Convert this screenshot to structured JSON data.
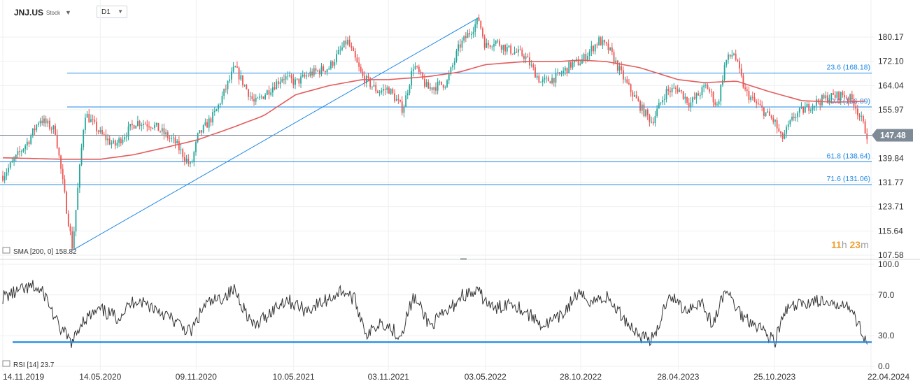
{
  "header": {
    "symbol": "JNJ.US",
    "symbol_type": "Stock",
    "timeframe": "D1",
    "caret_icon": "chevron-down-icon"
  },
  "countdown": {
    "hours": "11",
    "hours_unit": "h",
    "minutes": "23",
    "minutes_unit": "m"
  },
  "colors": {
    "candle_up": "#26a69a",
    "candle_down": "#ef5350",
    "sma": "#e35d5d",
    "fib_line": "#1e88e5",
    "rsi_line": "#333333",
    "rsi_level": "#1e88e5",
    "price_badge": "#7e8a96"
  },
  "chart_data": [
    {
      "type": "candlestick",
      "title": "JNJ.US",
      "ylim": [
        107.58,
        184.0
      ],
      "y_ticks": [
        "180.17",
        "172.10",
        "164.04",
        "155.97",
        "147.48",
        "139.84",
        "131.77",
        "123.71",
        "115.64",
        "107.58"
      ],
      "x_ticks": [
        "14.11.2019",
        "14.05.2020",
        "09.11.2020",
        "10.05.2021",
        "03.11.2021",
        "03.05.2022",
        "28.10.2022",
        "28.04.2023",
        "25.10.2023",
        "22.04.2024"
      ],
      "last_price": "147.48",
      "indicator_label": "SMA [200, 0] 158.82",
      "trendline": {
        "from": {
          "date": "2020-03-23",
          "price": 109.2
        },
        "to": {
          "date": "2022-04-21",
          "price": 186.7
        }
      },
      "fib_levels": [
        {
          "label": "23.6 (168.18)",
          "price": 168.18
        },
        {
          "label": "50.0 (156.89)",
          "price": 156.89
        },
        {
          "label": "61.8 (138.64)",
          "price": 138.64
        },
        {
          "label": "71.6 (131.06)",
          "price": 131.06
        }
      ],
      "series": [
        {
          "name": "JNJ.US",
          "points": [
            [
              "2019-11-14",
              134
            ],
            [
              "2020-01-02",
              146
            ],
            [
              "2020-01-22",
              153
            ],
            [
              "2020-02-20",
              149
            ],
            [
              "2020-03-12",
              123
            ],
            [
              "2020-03-23",
              110
            ],
            [
              "2020-04-15",
              155
            ],
            [
              "2020-05-14",
              148
            ],
            [
              "2020-06-10",
              144
            ],
            [
              "2020-07-20",
              152
            ],
            [
              "2020-08-20",
              151
            ],
            [
              "2020-10-01",
              145
            ],
            [
              "2020-10-30",
              137
            ],
            [
              "2020-11-12",
              147
            ],
            [
              "2020-12-15",
              155
            ],
            [
              "2021-01-20",
              170
            ],
            [
              "2021-02-26",
              158
            ],
            [
              "2021-04-20",
              167
            ],
            [
              "2021-05-14",
              165
            ],
            [
              "2021-06-10",
              168
            ],
            [
              "2021-07-15",
              170
            ],
            [
              "2021-08-18",
              179
            ],
            [
              "2021-09-15",
              167
            ],
            [
              "2021-10-15",
              162
            ],
            [
              "2021-11-03",
              163
            ],
            [
              "2021-11-30",
              156
            ],
            [
              "2021-12-20",
              171
            ],
            [
              "2022-01-15",
              163
            ],
            [
              "2022-02-20",
              165
            ],
            [
              "2022-03-15",
              177
            ],
            [
              "2022-04-21",
              186
            ],
            [
              "2022-05-03",
              177
            ],
            [
              "2022-05-20",
              179
            ],
            [
              "2022-06-15",
              176
            ],
            [
              "2022-07-15",
              174
            ],
            [
              "2022-08-15",
              165
            ],
            [
              "2022-09-15",
              167
            ],
            [
              "2022-10-10",
              171
            ],
            [
              "2022-10-28",
              172
            ],
            [
              "2022-12-01",
              179
            ],
            [
              "2022-12-20",
              176
            ],
            [
              "2023-01-20",
              165
            ],
            [
              "2023-02-20",
              156
            ],
            [
              "2023-03-10",
              152
            ],
            [
              "2023-04-05",
              162
            ],
            [
              "2023-04-28",
              163
            ],
            [
              "2023-05-20",
              158
            ],
            [
              "2023-06-20",
              164
            ],
            [
              "2023-07-10",
              157
            ],
            [
              "2023-07-25",
              172
            ],
            [
              "2023-08-10",
              175
            ],
            [
              "2023-08-31",
              162
            ],
            [
              "2023-09-20",
              158
            ],
            [
              "2023-10-25",
              152
            ],
            [
              "2023-11-07",
              146
            ],
            [
              "2023-12-01",
              154
            ],
            [
              "2024-01-05",
              158
            ],
            [
              "2024-01-31",
              160
            ],
            [
              "2024-03-01",
              161
            ],
            [
              "2024-03-20",
              159
            ],
            [
              "2024-04-05",
              152
            ],
            [
              "2024-04-15",
              147.48
            ]
          ]
        },
        {
          "name": "SMA [200, 0]",
          "points": [
            [
              "2019-11-14",
              140
            ],
            [
              "2020-03-01",
              139.5
            ],
            [
              "2020-05-14",
              139.5
            ],
            [
              "2020-07-15",
              141
            ],
            [
              "2020-09-15",
              143.5
            ],
            [
              "2020-11-12",
              146
            ],
            [
              "2021-01-15",
              150
            ],
            [
              "2021-03-15",
              154
            ],
            [
              "2021-05-14",
              161
            ],
            [
              "2021-07-15",
              164
            ],
            [
              "2021-09-15",
              166
            ],
            [
              "2021-11-03",
              166
            ],
            [
              "2022-01-15",
              167
            ],
            [
              "2022-03-15",
              168.5
            ],
            [
              "2022-05-03",
              171
            ],
            [
              "2022-07-15",
              172
            ],
            [
              "2022-09-15",
              172
            ],
            [
              "2022-10-28",
              172.5
            ],
            [
              "2022-12-15",
              172
            ],
            [
              "2023-02-15",
              170
            ],
            [
              "2023-04-28",
              166
            ],
            [
              "2023-06-15",
              165
            ],
            [
              "2023-08-15",
              165.5
            ],
            [
              "2023-10-15",
              162
            ],
            [
              "2023-12-15",
              159
            ],
            [
              "2024-02-15",
              158.5
            ],
            [
              "2024-04-15",
              158.82
            ]
          ]
        }
      ]
    },
    {
      "type": "line",
      "title": "RSI [14]",
      "indicator_label": "RSI [14] 23.7",
      "ylim": [
        0,
        100
      ],
      "y_ticks": [
        "100.0",
        "70.0",
        "30.0",
        "0.0"
      ],
      "level": 23.7,
      "series": [
        {
          "name": "RSI [14]",
          "points": [
            [
              "2019-11-14",
              68
            ],
            [
              "2020-01-10",
              78
            ],
            [
              "2020-02-01",
              70
            ],
            [
              "2020-02-25",
              40
            ],
            [
              "2020-03-23",
              22
            ],
            [
              "2020-04-10",
              45
            ],
            [
              "2020-05-14",
              55
            ],
            [
              "2020-06-15",
              48
            ],
            [
              "2020-07-20",
              66
            ],
            [
              "2020-09-01",
              55
            ],
            [
              "2020-10-05",
              42
            ],
            [
              "2020-10-30",
              33
            ],
            [
              "2020-11-25",
              60
            ],
            [
              "2020-12-20",
              65
            ],
            [
              "2021-01-20",
              75
            ],
            [
              "2021-02-25",
              38
            ],
            [
              "2021-03-25",
              52
            ],
            [
              "2021-04-25",
              66
            ],
            [
              "2021-06-01",
              55
            ],
            [
              "2021-07-01",
              62
            ],
            [
              "2021-08-10",
              75
            ],
            [
              "2021-09-01",
              65
            ],
            [
              "2021-09-25",
              30
            ],
            [
              "2021-10-20",
              45
            ],
            [
              "2021-11-25",
              30
            ],
            [
              "2021-12-20",
              68
            ],
            [
              "2022-01-20",
              40
            ],
            [
              "2022-02-25",
              55
            ],
            [
              "2022-03-20",
              70
            ],
            [
              "2022-04-20",
              72
            ],
            [
              "2022-05-20",
              55
            ],
            [
              "2022-06-20",
              64
            ],
            [
              "2022-07-20",
              52
            ],
            [
              "2022-08-20",
              40
            ],
            [
              "2022-09-20",
              48
            ],
            [
              "2022-10-20",
              70
            ],
            [
              "2022-11-20",
              64
            ],
            [
              "2022-12-15",
              68
            ],
            [
              "2023-01-20",
              45
            ],
            [
              "2023-02-15",
              30
            ],
            [
              "2023-03-15",
              26
            ],
            [
              "2023-04-10",
              72
            ],
            [
              "2023-05-10",
              55
            ],
            [
              "2023-06-10",
              64
            ],
            [
              "2023-07-01",
              40
            ],
            [
              "2023-07-25",
              75
            ],
            [
              "2023-08-25",
              50
            ],
            [
              "2023-09-25",
              40
            ],
            [
              "2023-10-25",
              24
            ],
            [
              "2023-11-15",
              55
            ],
            [
              "2023-12-10",
              60
            ],
            [
              "2024-01-10",
              65
            ],
            [
              "2024-02-10",
              58
            ],
            [
              "2024-03-05",
              65
            ],
            [
              "2024-03-25",
              45
            ],
            [
              "2024-04-05",
              35
            ],
            [
              "2024-04-15",
              23.7
            ]
          ]
        }
      ]
    }
  ]
}
